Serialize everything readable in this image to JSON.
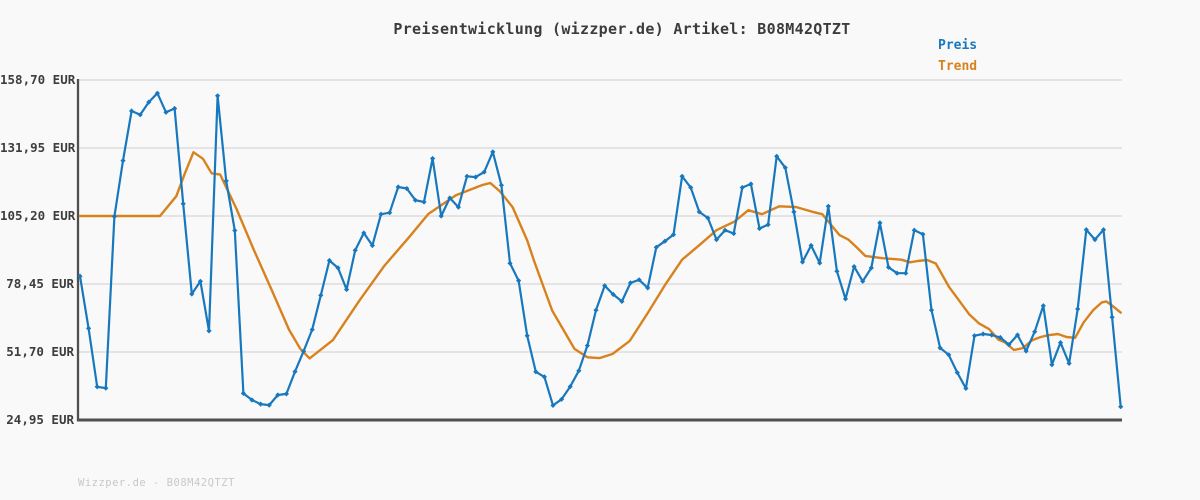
{
  "title": "Preisentwicklung (wizzper.de) Artikel: B08M42QTZT",
  "footer": {
    "watermark": "Wizzper.de - B08M42QTZT"
  },
  "legend": {
    "preis": "Preis",
    "trend": "Trend"
  },
  "colors": {
    "preis": "#1878be",
    "trend": "#d8821e",
    "grid": "#e4e4e4",
    "axis": "#4f4f4f",
    "background": "#f9f9f9",
    "title_text": "#3c3c3c",
    "tick_text": "#3d3d3d",
    "watermark_text": "#c8c8c8"
  },
  "y_axis": {
    "unit": "EUR",
    "tick_labels": [
      "158,70 EUR",
      "131,95 EUR",
      "105,20 EUR",
      "78,45 EUR",
      "51,70 EUR",
      "24,95 EUR"
    ],
    "tick_values": [
      158.7,
      131.95,
      105.2,
      78.45,
      51.7,
      24.95
    ]
  },
  "x_axis": {
    "labels_visible": false
  },
  "chart_data": {
    "type": "line",
    "title": "Preisentwicklung (wizzper.de) Artikel: B08M42QTZT",
    "ylabel": "EUR",
    "ylim": [
      24.95,
      158.7
    ],
    "grid": true,
    "legend_position": "top-right-outside",
    "series": [
      {
        "name": "Preis",
        "color": "#1878be",
        "marker": "diamond",
        "values": [
          81.5,
          61,
          38,
          37.5,
          105,
          127,
          146.5,
          145,
          150,
          153.5,
          146,
          147.5,
          110,
          74.5,
          79.5,
          60,
          152.5,
          119,
          99.5,
          35.4,
          32.8,
          31.2,
          30.8,
          34.8,
          35.2,
          44,
          52,
          60.5,
          74,
          87.7,
          84.8,
          76.3,
          91.7,
          98.5,
          93.6,
          105.9,
          106.5,
          116.6,
          116,
          111.4,
          110.7,
          127.8,
          105.2,
          112.3,
          108.7,
          120.8,
          120.5,
          122.5,
          130.4,
          117.3,
          86.6,
          79.8,
          58.1,
          43.9,
          41.9,
          30.7,
          33.1,
          38.1,
          44.3,
          54.2,
          68.2,
          77.8,
          74.3,
          71.6,
          78.9,
          80.1,
          76.9,
          92.9,
          95.3,
          97.9,
          120.8,
          116.4,
          106.8,
          104.4,
          95.9,
          99.6,
          98.3,
          116.4,
          117.8,
          100.3,
          101.8,
          128.7,
          124.2,
          106.8,
          87.1,
          93.6,
          86.7,
          109,
          83.5,
          72.6,
          85.3,
          79.5,
          84.8,
          102.5,
          85,
          82.7,
          82.7,
          99.6,
          98,
          68.2,
          53.3,
          50.6,
          43.6,
          37.4,
          58.1,
          58.8,
          58.4,
          57.4,
          54.6,
          58.4,
          52.1,
          59.7,
          69.9,
          46.7,
          55.4,
          47.2,
          68.6,
          99.8,
          95.9,
          99.8,
          65.4,
          30.2
        ]
      },
      {
        "name": "Trend",
        "color": "#d8821e",
        "marker": "none",
        "points": [
          [
            0,
            105.2
          ],
          [
            9.3,
            105.2
          ],
          [
            11.2,
            113
          ],
          [
            12.2,
            122
          ],
          [
            13.2,
            130.3
          ],
          [
            14.3,
            127.7
          ],
          [
            15.3,
            122
          ],
          [
            16.3,
            121.5
          ],
          [
            18.2,
            108
          ],
          [
            20.2,
            92
          ],
          [
            22.3,
            76
          ],
          [
            24.3,
            60.5
          ],
          [
            25.6,
            53
          ],
          [
            26.7,
            49.2
          ],
          [
            29.4,
            56.4
          ],
          [
            32.5,
            72
          ],
          [
            35.4,
            85.7
          ],
          [
            38.3,
            97
          ],
          [
            40.5,
            106
          ],
          [
            43.7,
            113.4
          ],
          [
            46.7,
            117.3
          ],
          [
            47.7,
            118.2
          ],
          [
            48.8,
            115
          ],
          [
            50.3,
            108.7
          ],
          [
            52,
            95.6
          ],
          [
            52.8,
            87.5
          ],
          [
            54.9,
            68
          ],
          [
            57.5,
            52.9
          ],
          [
            59,
            49.6
          ],
          [
            60.4,
            49.3
          ],
          [
            61.9,
            50.9
          ],
          [
            63.9,
            56
          ],
          [
            66,
            67
          ],
          [
            68.1,
            78.5
          ],
          [
            70,
            88
          ],
          [
            72.2,
            94.3
          ],
          [
            74,
            99.6
          ],
          [
            76.1,
            103
          ],
          [
            77.7,
            107.5
          ],
          [
            79.3,
            105.9
          ],
          [
            81.3,
            109
          ],
          [
            83.3,
            108.7
          ],
          [
            85.2,
            106.8
          ],
          [
            86.3,
            105.9
          ],
          [
            88.3,
            97.7
          ],
          [
            89.3,
            96
          ],
          [
            90.2,
            93.2
          ],
          [
            91.3,
            89.5
          ],
          [
            93.3,
            88.6
          ],
          [
            95.5,
            88
          ],
          [
            96.5,
            87
          ],
          [
            97.4,
            87.5
          ],
          [
            98.5,
            87.9
          ],
          [
            99.5,
            86.5
          ],
          [
            101,
            77.5
          ],
          [
            102.2,
            72
          ],
          [
            103.4,
            66.5
          ],
          [
            104.5,
            63
          ],
          [
            105.7,
            60.7
          ],
          [
            106.8,
            56.5
          ],
          [
            107.5,
            55.6
          ],
          [
            108.6,
            52.5
          ],
          [
            109.6,
            53.2
          ],
          [
            110.7,
            56.3
          ],
          [
            111.7,
            57.6
          ],
          [
            112.6,
            58.3
          ],
          [
            113.7,
            58.8
          ],
          [
            114.7,
            57.6
          ],
          [
            115.7,
            57.3
          ],
          [
            116.7,
            63.4
          ],
          [
            117.8,
            68.2
          ],
          [
            118.8,
            71.2
          ],
          [
            119.3,
            71.6
          ],
          [
            119.8,
            70.5
          ],
          [
            121,
            67.2
          ]
        ]
      }
    ]
  }
}
